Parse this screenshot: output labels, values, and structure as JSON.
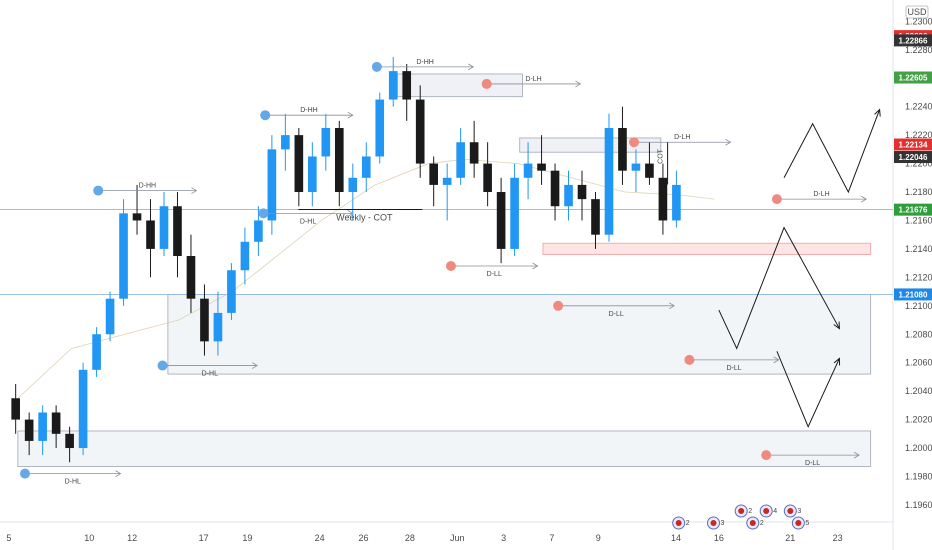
{
  "chart_data": {
    "type": "candlestick",
    "currency": "USD",
    "y_axis": {
      "min": 1.1948,
      "max": 1.2315,
      "ticks": [
        "1.2300",
        "1.2280",
        "1.2260",
        "1.2240",
        "1.2220",
        "1.2200",
        "1.2180",
        "1.2160",
        "1.2140",
        "1.2120",
        "1.2100",
        "1.2080",
        "1.2060",
        "1.2040",
        "1.2020",
        "1.2000",
        "1.1980",
        "1.1960"
      ],
      "tick_labels": [
        "1.2300",
        "1.22800",
        "1.22600",
        "1.22400",
        "1.22200",
        "1.22000",
        "1.21800",
        "1.21600",
        "1.21400",
        "1.21200",
        "1.21000",
        "1.20800",
        "1.20600",
        "1.20400",
        "1.20200",
        "1.20000",
        "1.19800",
        "1.19600"
      ],
      "top_label": "1.2"
    },
    "x_axis": {
      "tick_labels": [
        "5",
        "10",
        "12",
        "17",
        "19",
        "24",
        "26",
        "28",
        "Jun",
        "3",
        "7",
        "9",
        "14",
        "16",
        "21",
        "23"
      ]
    },
    "price_badges": [
      {
        "value": "1.22896",
        "price": 1.22896,
        "color": "#e0302f"
      },
      {
        "value": "1.22866",
        "price": 1.22866,
        "color": "#333333"
      },
      {
        "value": "1.22605",
        "price": 1.22605,
        "color": "#43a047"
      },
      {
        "value": "1.22134",
        "price": 1.22134,
        "color": "#e0302f"
      },
      {
        "value": "1.22046",
        "price": 1.22046,
        "color": "#333333"
      },
      {
        "value": "1.21676",
        "price": 1.21676,
        "color": "#2e9d3b"
      },
      {
        "value": "1.21080",
        "price": 1.2108,
        "color": "#1e88e5"
      }
    ],
    "horizontal_lines": [
      {
        "price": 1.21676,
        "color": "#90a4c8"
      },
      {
        "price": 1.2108,
        "color": "#90b8e8"
      }
    ],
    "candles": [
      [
        1.2035,
        1.2045,
        1.201,
        1.202
      ],
      [
        1.202,
        1.2025,
        1.1995,
        1.2005
      ],
      [
        1.2005,
        1.203,
        1.1995,
        1.2025
      ],
      [
        1.2025,
        1.203,
        1.2,
        1.201
      ],
      [
        1.201,
        1.2015,
        1.199,
        1.2
      ],
      [
        1.2,
        1.206,
        1.1995,
        1.2055
      ],
      [
        1.2055,
        1.2085,
        1.205,
        1.208
      ],
      [
        1.208,
        1.211,
        1.2075,
        1.2105
      ],
      [
        1.2105,
        1.2175,
        1.21,
        1.2165
      ],
      [
        1.2165,
        1.2185,
        1.215,
        1.216
      ],
      [
        1.216,
        1.2175,
        1.212,
        1.214
      ],
      [
        1.214,
        1.218,
        1.2135,
        1.217
      ],
      [
        1.217,
        1.218,
        1.212,
        1.2135
      ],
      [
        1.2135,
        1.215,
        1.2095,
        1.2105
      ],
      [
        1.2105,
        1.2115,
        1.2065,
        1.2075
      ],
      [
        1.2075,
        1.211,
        1.2065,
        1.2095
      ],
      [
        1.2095,
        1.213,
        1.209,
        1.2125
      ],
      [
        1.2125,
        1.2155,
        1.2115,
        1.2145
      ],
      [
        1.2145,
        1.217,
        1.2135,
        1.216
      ],
      [
        1.216,
        1.222,
        1.215,
        1.221
      ],
      [
        1.221,
        1.2235,
        1.2195,
        1.222
      ],
      [
        1.222,
        1.2225,
        1.217,
        1.218
      ],
      [
        1.218,
        1.2215,
        1.217,
        1.2205
      ],
      [
        1.2205,
        1.2235,
        1.2195,
        1.2225
      ],
      [
        1.2225,
        1.223,
        1.217,
        1.218
      ],
      [
        1.218,
        1.22,
        1.216,
        1.219
      ],
      [
        1.219,
        1.2215,
        1.218,
        1.2205
      ],
      [
        1.2205,
        1.225,
        1.22,
        1.2245
      ],
      [
        1.2245,
        1.2275,
        1.224,
        1.2265
      ],
      [
        1.2265,
        1.227,
        1.223,
        1.2245
      ],
      [
        1.2245,
        1.2255,
        1.219,
        1.22
      ],
      [
        1.22,
        1.2205,
        1.217,
        1.2185
      ],
      [
        1.2185,
        1.22,
        1.216,
        1.219
      ],
      [
        1.219,
        1.2225,
        1.2185,
        1.2215
      ],
      [
        1.2215,
        1.223,
        1.219,
        1.22
      ],
      [
        1.22,
        1.2215,
        1.217,
        1.218
      ],
      [
        1.218,
        1.219,
        1.213,
        1.214
      ],
      [
        1.214,
        1.22,
        1.2135,
        1.219
      ],
      [
        1.219,
        1.2215,
        1.2175,
        1.22
      ],
      [
        1.22,
        1.222,
        1.2185,
        1.2195
      ],
      [
        1.2195,
        1.22,
        1.216,
        1.217
      ],
      [
        1.217,
        1.2195,
        1.216,
        1.2185
      ],
      [
        1.2185,
        1.2195,
        1.216,
        1.2175
      ],
      [
        1.2175,
        1.218,
        1.214,
        1.215
      ],
      [
        1.215,
        1.2235,
        1.2145,
        1.2225
      ],
      [
        1.2225,
        1.224,
        1.2185,
        1.2195
      ],
      [
        1.2195,
        1.221,
        1.218,
        1.22
      ],
      [
        1.22,
        1.2215,
        1.2185,
        1.219
      ],
      [
        1.219,
        1.22,
        1.215,
        1.216
      ],
      [
        1.216,
        1.2195,
        1.2155,
        1.2185
      ]
    ],
    "rectangles": [
      {
        "x0": 0.445,
        "x1": 0.585,
        "p_top": 1.2263,
        "p_bot": 1.2247,
        "fill": "#eceff4",
        "stroke": "#9fa6b2"
      },
      {
        "x0": 0.582,
        "x1": 0.74,
        "p_top": 1.2218,
        "p_bot": 1.2208,
        "fill": "#eceff4",
        "stroke": "#9fa6b2"
      },
      {
        "x0": 0.188,
        "x1": 0.975,
        "p_top": 1.2108,
        "p_bot": 1.2052,
        "fill": "#f0f3f7",
        "stroke": "#9fa6b2"
      },
      {
        "x0": 0.02,
        "x1": 0.975,
        "p_top": 1.2012,
        "p_bot": 1.1987,
        "fill": "#f0f3f7",
        "stroke": "#9fa6b2"
      },
      {
        "x0": 0.608,
        "x1": 0.975,
        "p_top": 1.2144,
        "p_bot": 1.2136,
        "fill": "#fde0e0",
        "stroke": "#f0a0a0"
      }
    ],
    "markers": [
      {
        "label": "D-HH",
        "x": 0.11,
        "price": 1.2181,
        "color": "#64a8e8",
        "line_to": 0.22
      },
      {
        "label": "D-HH",
        "x": 0.297,
        "price": 1.2234,
        "color": "#64a8e8",
        "line_to": 0.395
      },
      {
        "label": "D-HH",
        "x": 0.422,
        "price": 1.2268,
        "color": "#64a8e8",
        "line_to": 0.53
      },
      {
        "label": "D-LH",
        "x": 0.545,
        "price": 1.2256,
        "color": "#ef8a80",
        "line_to": 0.65
      },
      {
        "label": "D-LH",
        "x": 0.71,
        "price": 1.2215,
        "color": "#ef8a80",
        "line_to": 0.818
      },
      {
        "label": "D-LH",
        "x": 0.87,
        "price": 1.2175,
        "color": "#ef8a80",
        "line_to": 0.97
      },
      {
        "label": "D-HL",
        "x": 0.295,
        "price": 1.2165,
        "color": "#64a8e8",
        "line_to": 0.395
      },
      {
        "label": "D-HL",
        "x": 0.182,
        "price": 1.2058,
        "color": "#64a8e8",
        "line_to": 0.288
      },
      {
        "label": "D-HL",
        "x": 0.028,
        "price": 1.1982,
        "color": "#64a8e8",
        "line_to": 0.135
      },
      {
        "label": "D-LL",
        "x": 0.505,
        "price": 1.2128,
        "color": "#ef8a80",
        "line_to": 0.602
      },
      {
        "label": "D-LL",
        "x": 0.625,
        "price": 1.21,
        "color": "#ef8a80",
        "line_to": 0.755
      },
      {
        "label": "D-LL",
        "x": 0.772,
        "price": 1.2062,
        "color": "#ef8a80",
        "line_to": 0.872
      },
      {
        "label": "D-LL",
        "x": 0.858,
        "price": 1.1995,
        "color": "#ef8a80",
        "line_to": 0.962
      }
    ],
    "annotations": [
      {
        "text": "Weekly - COT",
        "x": 0.408,
        "price": 1.21635
      },
      {
        "text": "COT",
        "x": 0.742,
        "price": 1.2205,
        "vertical": true
      }
    ],
    "projection_paths": [
      [
        [
          0.805,
          1.2097
        ],
        [
          0.825,
          1.207
        ],
        [
          0.878,
          1.2155
        ],
        [
          0.94,
          1.2084
        ]
      ],
      [
        [
          0.878,
          1.219
        ],
        [
          0.91,
          1.2228
        ],
        [
          0.95,
          1.218
        ],
        [
          0.985,
          1.2238
        ]
      ],
      [
        [
          0.87,
          1.2068
        ],
        [
          0.905,
          1.2015
        ],
        [
          0.94,
          1.2063
        ]
      ]
    ],
    "moving_average": [
      [
        0.02,
        1.2035
      ],
      [
        0.08,
        1.207
      ],
      [
        0.14,
        1.208
      ],
      [
        0.2,
        1.209
      ],
      [
        0.26,
        1.211
      ],
      [
        0.3,
        1.213
      ],
      [
        0.36,
        1.216
      ],
      [
        0.42,
        1.2185
      ],
      [
        0.48,
        1.22
      ],
      [
        0.52,
        1.2203
      ],
      [
        0.58,
        1.22
      ],
      [
        0.64,
        1.219
      ],
      [
        0.7,
        1.218
      ],
      [
        0.76,
        1.2178
      ],
      [
        0.8,
        1.2175
      ]
    ],
    "event_badges": [
      {
        "text": "3",
        "x": 0.799,
        "y": 523
      },
      {
        "text": "2",
        "x": 0.83,
        "y": 511
      },
      {
        "text": "4",
        "x": 0.858,
        "y": 511
      },
      {
        "text": "2",
        "x": 0.843,
        "y": 523
      },
      {
        "text": "5",
        "x": 0.894,
        "y": 523
      },
      {
        "text": "2",
        "x": 0.76,
        "y": 523
      },
      {
        "text": "3",
        "x": 0.885,
        "y": 511
      }
    ]
  }
}
